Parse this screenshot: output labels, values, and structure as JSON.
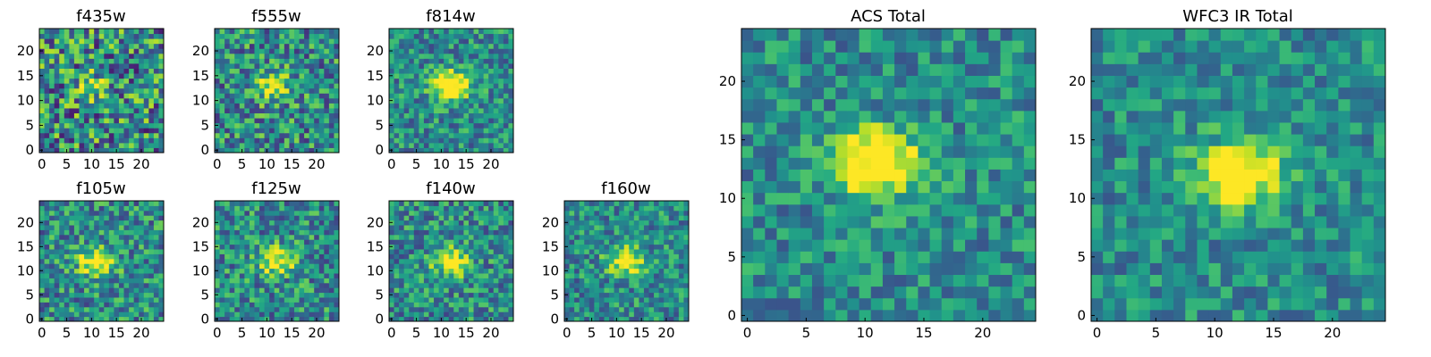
{
  "chart_data": [
    {
      "type": "heatmap",
      "title": "f435w",
      "colormap": "viridis",
      "grid_size": 25,
      "source_x": 10,
      "source_y": 13,
      "source_strength": 0.25,
      "noise": 0.55,
      "seed": 11,
      "xticks": [
        "0",
        "5",
        "10",
        "15",
        "20"
      ],
      "yticks": [
        "0",
        "5",
        "10",
        "15",
        "20"
      ],
      "xlim": [
        0,
        24
      ],
      "ylim": [
        0,
        24
      ]
    },
    {
      "type": "heatmap",
      "title": "f555w",
      "colormap": "viridis",
      "grid_size": 25,
      "source_x": 11,
      "source_y": 13,
      "source_strength": 0.5,
      "noise": 0.45,
      "seed": 23,
      "xticks": [
        "0",
        "5",
        "10",
        "15",
        "20"
      ],
      "yticks": [
        "0",
        "5",
        "10",
        "15",
        "20"
      ],
      "xlim": [
        0,
        24
      ],
      "ylim": [
        0,
        24
      ]
    },
    {
      "type": "heatmap",
      "title": "f814w",
      "colormap": "viridis",
      "grid_size": 25,
      "source_x": 12,
      "source_y": 13,
      "source_strength": 0.8,
      "noise": 0.35,
      "seed": 37,
      "xticks": [
        "0",
        "5",
        "10",
        "15",
        "20"
      ],
      "yticks": [
        "0",
        "5",
        "10",
        "15",
        "20"
      ],
      "xlim": [
        0,
        24
      ],
      "ylim": [
        0,
        24
      ]
    },
    {
      "type": "heatmap",
      "title": "f105w",
      "colormap": "viridis",
      "grid_size": 25,
      "source_x": 11,
      "source_y": 12,
      "source_strength": 0.6,
      "noise": 0.4,
      "seed": 41,
      "xticks": [
        "0",
        "5",
        "10",
        "15",
        "20"
      ],
      "yticks": [
        "0",
        "5",
        "10",
        "15",
        "20"
      ],
      "xlim": [
        0,
        24
      ],
      "ylim": [
        0,
        24
      ]
    },
    {
      "type": "heatmap",
      "title": "f125w",
      "colormap": "viridis",
      "grid_size": 25,
      "source_x": 12,
      "source_y": 12,
      "source_strength": 0.55,
      "noise": 0.4,
      "seed": 53,
      "xticks": [
        "0",
        "5",
        "10",
        "15",
        "20"
      ],
      "yticks": [
        "0",
        "5",
        "10",
        "15",
        "20"
      ],
      "xlim": [
        0,
        24
      ],
      "ylim": [
        0,
        24
      ]
    },
    {
      "type": "heatmap",
      "title": "f140w",
      "colormap": "viridis",
      "grid_size": 25,
      "source_x": 12,
      "source_y": 12,
      "source_strength": 0.6,
      "noise": 0.38,
      "seed": 67,
      "xticks": [
        "0",
        "5",
        "10",
        "15",
        "20"
      ],
      "yticks": [
        "0",
        "5",
        "10",
        "15",
        "20"
      ],
      "xlim": [
        0,
        24
      ],
      "ylim": [
        0,
        24
      ]
    },
    {
      "type": "heatmap",
      "title": "f160w",
      "colormap": "viridis",
      "grid_size": 25,
      "source_x": 12,
      "source_y": 12,
      "source_strength": 0.6,
      "noise": 0.35,
      "seed": 79,
      "xticks": [
        "0",
        "5",
        "10",
        "15",
        "20"
      ],
      "yticks": [
        "0",
        "5",
        "10",
        "15",
        "20"
      ],
      "xlim": [
        0,
        24
      ],
      "ylim": [
        0,
        24
      ]
    },
    {
      "type": "heatmap",
      "title": "ACS Total",
      "colormap": "viridis",
      "grid_size": 25,
      "source_x": 11,
      "source_y": 13,
      "source_strength": 0.75,
      "noise": 0.3,
      "seed": 97,
      "xticks": [
        "0",
        "5",
        "10",
        "15",
        "20"
      ],
      "yticks": [
        "0",
        "5",
        "10",
        "15",
        "20"
      ],
      "xlim": [
        0,
        24
      ],
      "ylim": [
        0,
        24
      ]
    },
    {
      "type": "heatmap",
      "title": "WFC3 IR Total",
      "colormap": "viridis",
      "grid_size": 25,
      "source_x": 12,
      "source_y": 12,
      "source_strength": 0.7,
      "noise": 0.28,
      "seed": 113,
      "xticks": [
        "0",
        "5",
        "10",
        "15",
        "20"
      ],
      "yticks": [
        "0",
        "5",
        "10",
        "15",
        "20"
      ],
      "xlim": [
        0,
        24
      ],
      "ylim": [
        0,
        24
      ]
    }
  ]
}
